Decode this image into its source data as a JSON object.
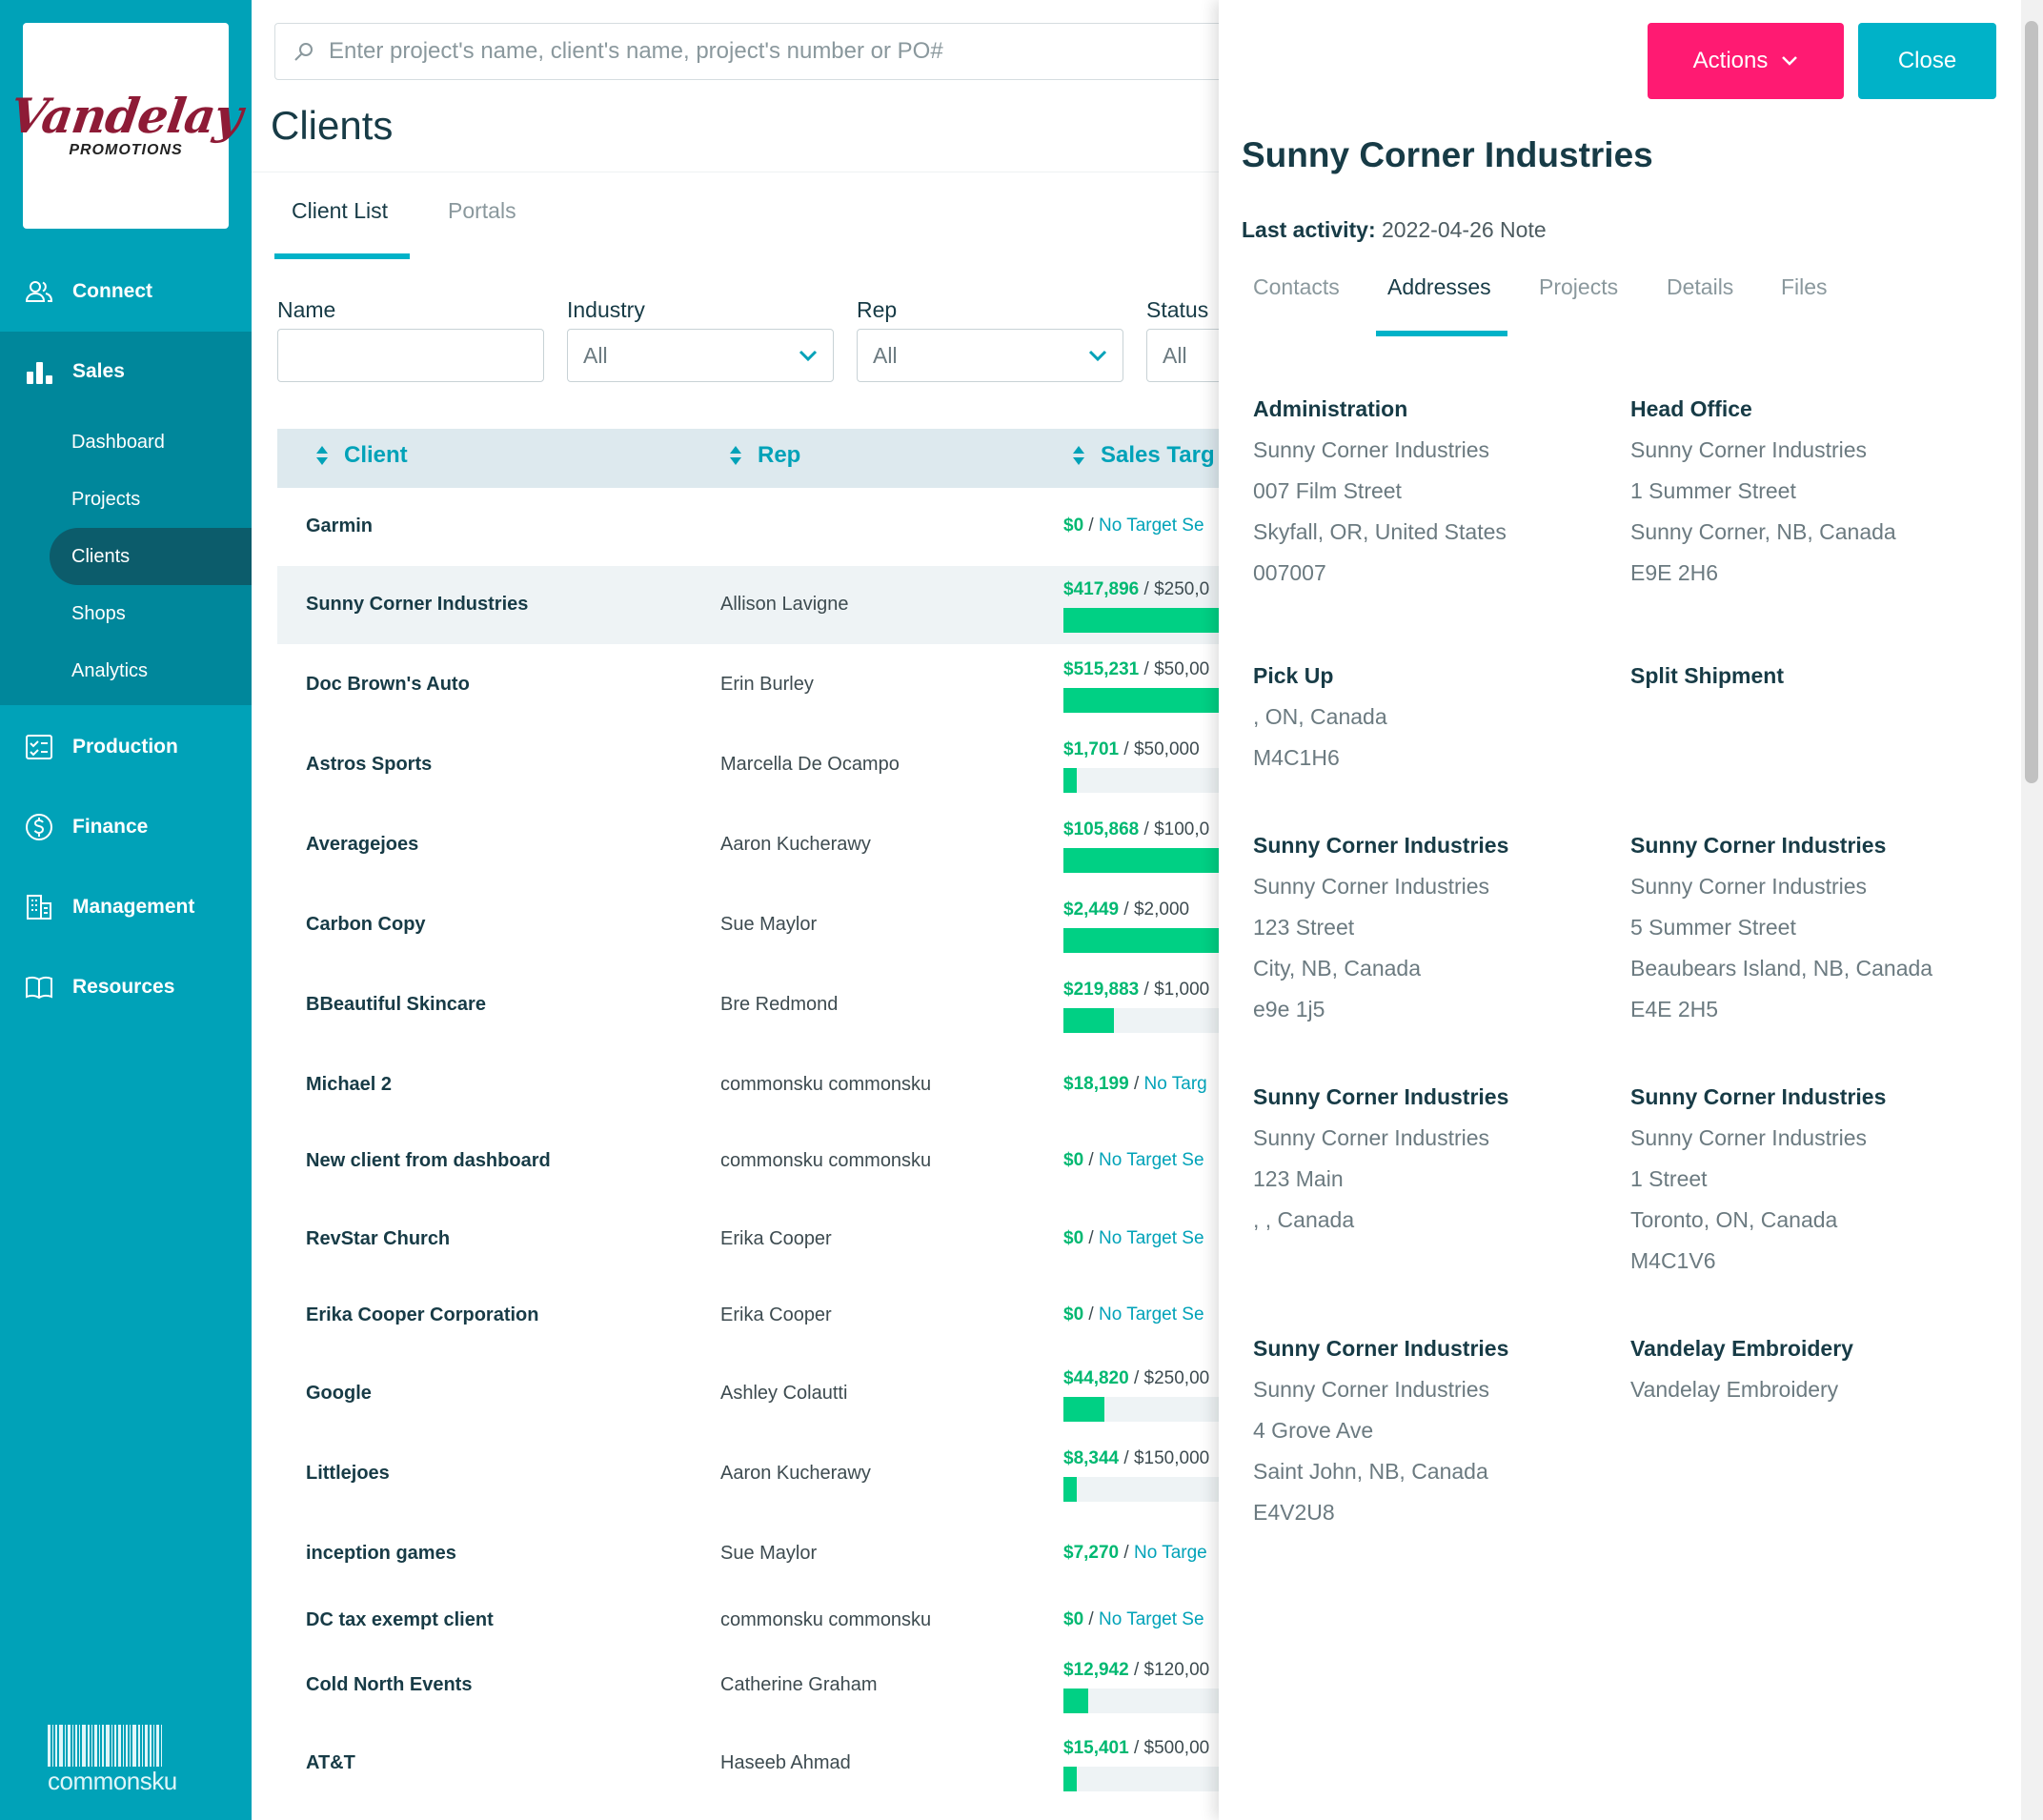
{
  "brand": {
    "logo_script": "Vandelay",
    "logo_sub": "PROMOTIONS",
    "footer": "commonsku"
  },
  "nav": {
    "connect": "Connect",
    "sales": "Sales",
    "sales_sub": {
      "dashboard": "Dashboard",
      "projects": "Projects",
      "clients": "Clients",
      "shops": "Shops",
      "analytics": "Analytics"
    },
    "production": "Production",
    "finance": "Finance",
    "management": "Management",
    "resources": "Resources"
  },
  "search": {
    "placeholder": "Enter project's name, client's name, project's number or PO#"
  },
  "page": {
    "title": "Clients",
    "tabs": [
      "Client List",
      "Portals"
    ]
  },
  "filters": {
    "name_label": "Name",
    "name_value": "",
    "industry_label": "Industry",
    "industry_value": "All",
    "rep_label": "Rep",
    "rep_value": "All",
    "status_label": "Status",
    "status_value": "All"
  },
  "table": {
    "headers": [
      "Client",
      "Rep",
      "Sales Targ"
    ],
    "rows": [
      {
        "client": "Garmin",
        "rep": "",
        "amount": "$0",
        "target": "No Target Se",
        "no_target": true,
        "progress": 0
      },
      {
        "client": "Sunny Corner Industries",
        "rep": "Allison Lavigne",
        "amount": "$417,896",
        "target": "$250,0",
        "no_target": false,
        "progress": 1.0
      },
      {
        "client": "Doc Brown's Auto",
        "rep": "Erin Burley",
        "amount": "$515,231",
        "target": "$50,00",
        "no_target": false,
        "progress": 1.0
      },
      {
        "client": "Astros Sports",
        "rep": "Marcella De Ocampo",
        "amount": "$1,701",
        "target": "$50,000",
        "no_target": false,
        "progress": 0.034
      },
      {
        "client": "Averagejoes",
        "rep": "Aaron Kucherawy",
        "amount": "$105,868",
        "target": "$100,0",
        "no_target": false,
        "progress": 1.0
      },
      {
        "client": "Carbon Copy",
        "rep": "Sue Maylor",
        "amount": "$2,449",
        "target": "$2,000",
        "no_target": false,
        "progress": 1.0
      },
      {
        "client": "BBeautiful Skincare",
        "rep": "Bre Redmond",
        "amount": "$219,883",
        "target": "$1,000",
        "no_target": false,
        "progress": 0.22
      },
      {
        "client": "Michael 2",
        "rep": "commonsku commonsku",
        "amount": "$18,199",
        "target": "No Targ",
        "no_target": true,
        "progress": 0
      },
      {
        "client": "New client from dashboard",
        "rep": "commonsku commonsku",
        "amount": "$0",
        "target": "No Target Se",
        "no_target": true,
        "progress": 0
      },
      {
        "client": "RevStar Church",
        "rep": "Erika Cooper",
        "amount": "$0",
        "target": "No Target Se",
        "no_target": true,
        "progress": 0
      },
      {
        "client": "Erika Cooper Corporation",
        "rep": "Erika Cooper",
        "amount": "$0",
        "target": "No Target Se",
        "no_target": true,
        "progress": 0
      },
      {
        "client": "Google",
        "rep": "Ashley Colautti",
        "amount": "$44,820",
        "target": "$250,00",
        "no_target": false,
        "progress": 0.18
      },
      {
        "client": "Littlejoes",
        "rep": "Aaron Kucherawy",
        "amount": "$8,344",
        "target": "$150,000",
        "no_target": false,
        "progress": 0.056
      },
      {
        "client": "inception games",
        "rep": "Sue Maylor",
        "amount": "$7,270",
        "target": "No Targe",
        "no_target": true,
        "progress": 0
      },
      {
        "client": "DC tax exempt client",
        "rep": "commonsku commonsku",
        "amount": "$0",
        "target": "No Target Se",
        "no_target": true,
        "progress": 0
      },
      {
        "client": "Cold North Events",
        "rep": "Catherine Graham",
        "amount": "$12,942",
        "target": "$120,00",
        "no_target": false,
        "progress": 0.108
      },
      {
        "client": "AT&T",
        "rep": "Haseeb Ahmad",
        "amount": "$15,401",
        "target": "$500,00",
        "no_target": false,
        "progress": 0.031
      }
    ]
  },
  "panel": {
    "actions_label": "Actions",
    "close_label": "Close",
    "title": "Sunny Corner Industries",
    "last_activity_label": "Last activity:",
    "last_activity_value": "2022-04-26 Note",
    "tabs": [
      "Contacts",
      "Addresses",
      "Projects",
      "Details",
      "Files"
    ],
    "addresses": [
      {
        "name": "Administration",
        "lines": [
          "Sunny Corner Industries",
          "007 Film Street",
          "Skyfall, OR, United States",
          "007007"
        ]
      },
      {
        "name": "Head Office",
        "lines": [
          "Sunny Corner Industries",
          "1 Summer Street",
          "Sunny Corner, NB, Canada",
          "E9E 2H6"
        ]
      },
      {
        "name": "Pick Up",
        "lines": [
          ", ON, Canada",
          "M4C1H6"
        ]
      },
      {
        "name": "Split Shipment",
        "lines": []
      },
      {
        "name": "Sunny Corner Industries",
        "lines": [
          "Sunny Corner Industries",
          "123 Street",
          "City, NB, Canada",
          "e9e 1j5"
        ]
      },
      {
        "name": "Sunny Corner Industries",
        "lines": [
          "Sunny Corner Industries",
          "5 Summer Street",
          "Beaubears Island, NB, Canada",
          "E4E 2H5"
        ]
      },
      {
        "name": "Sunny Corner Industries",
        "lines": [
          "Sunny Corner Industries",
          "123 Main",
          ", , Canada"
        ]
      },
      {
        "name": "Sunny Corner Industries",
        "lines": [
          "Sunny Corner Industries",
          "1 Street",
          "Toronto, ON, Canada",
          "M4C1V6"
        ]
      },
      {
        "name": "Sunny Corner Industries",
        "lines": [
          "Sunny Corner Industries",
          "4 Grove Ave",
          "Saint John, NB, Canada",
          "E4V2U8"
        ]
      },
      {
        "name": "Vandelay Embroidery",
        "lines": [
          "Vandelay Embroidery"
        ]
      }
    ]
  },
  "colors": {
    "sidebar": "#00a2b8",
    "sidebar_active": "#00879b",
    "accent": "#00b2c8",
    "actions_button": "#ff1a72",
    "amount_green": "#00b871",
    "bar_green": "#00d084",
    "title_dark": "#173b46"
  }
}
